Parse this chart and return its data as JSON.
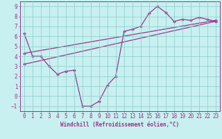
{
  "xlabel": "Windchill (Refroidissement éolien,°C)",
  "background_color": "#c8f0f0",
  "grid_color": "#88cccc",
  "line_color": "#993388",
  "xlim": [
    -0.5,
    23.5
  ],
  "ylim": [
    -1.5,
    9.5
  ],
  "xticks": [
    0,
    1,
    2,
    3,
    4,
    5,
    6,
    7,
    8,
    9,
    10,
    11,
    12,
    13,
    14,
    15,
    16,
    17,
    18,
    19,
    20,
    21,
    22,
    23
  ],
  "yticks": [
    -1,
    0,
    1,
    2,
    3,
    4,
    5,
    6,
    7,
    8,
    9
  ],
  "curve1_x": [
    0,
    1,
    2,
    3,
    4,
    5,
    6,
    7,
    8,
    9,
    10,
    11,
    12,
    13,
    14,
    15,
    16,
    17,
    18,
    19,
    20,
    21,
    22,
    23
  ],
  "curve1_y": [
    6.3,
    4.0,
    4.0,
    3.0,
    2.2,
    2.5,
    2.6,
    -1.0,
    -1.0,
    -0.5,
    1.1,
    2.0,
    6.5,
    6.7,
    7.0,
    8.3,
    9.0,
    8.4,
    7.5,
    7.7,
    7.6,
    7.9,
    7.7,
    7.5
  ],
  "line2_x": [
    0,
    23
  ],
  "line2_y": [
    4.3,
    7.6
  ],
  "line3_x": [
    0,
    23
  ],
  "line3_y": [
    3.2,
    7.5
  ],
  "label_fontsize": 5.5,
  "tick_fontsize": 5.5
}
